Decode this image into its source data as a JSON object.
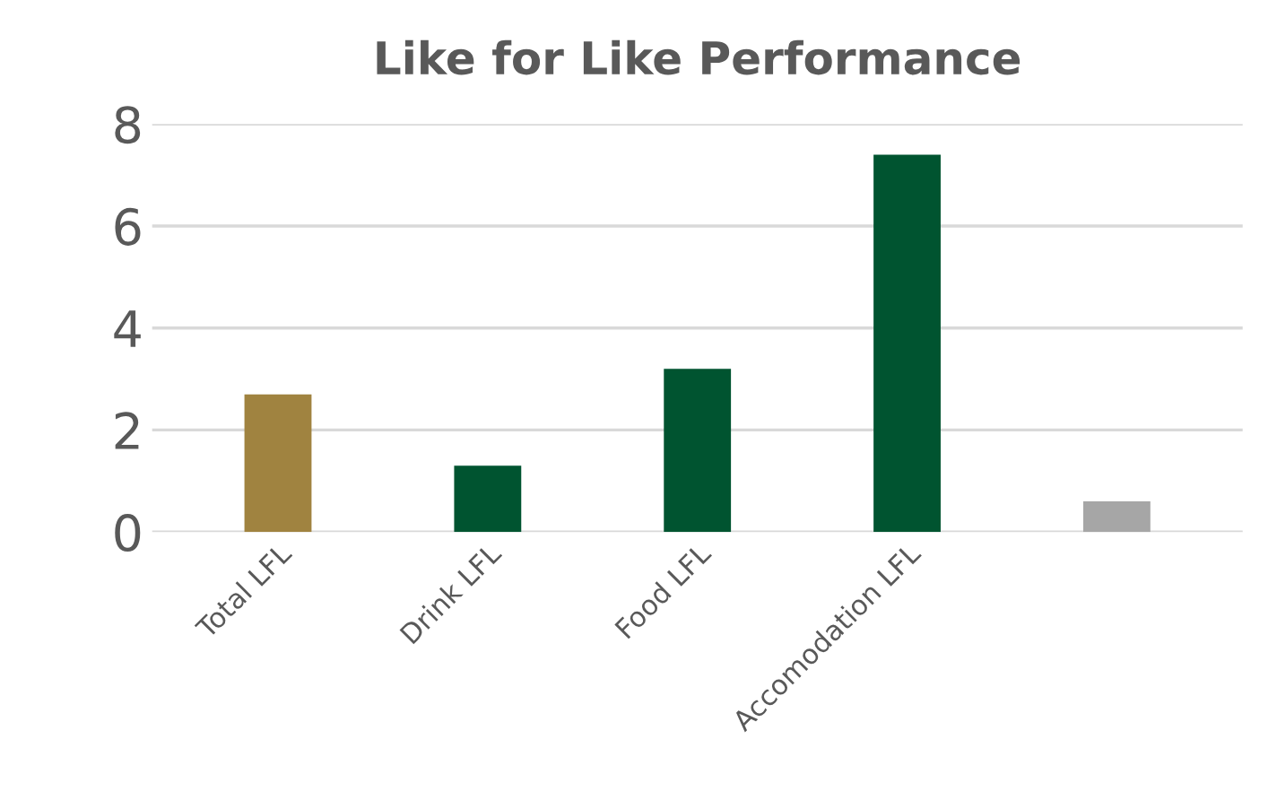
{
  "chart_data": {
    "type": "bar",
    "title": "Like for Like Performance",
    "categories": [
      "Total LFL",
      "Drink LFL",
      "Food LFL",
      "Accomodation LFL",
      null
    ],
    "values": [
      2.7,
      1.3,
      3.2,
      7.4,
      0.6
    ],
    "colors": [
      "#a08340",
      "#005430",
      "#005430",
      "#005430",
      "#a6a6a6"
    ],
    "ylim": [
      0,
      8
    ],
    "yticks": [
      0,
      2,
      4,
      6,
      8
    ],
    "grid": "y",
    "legend": false
  }
}
